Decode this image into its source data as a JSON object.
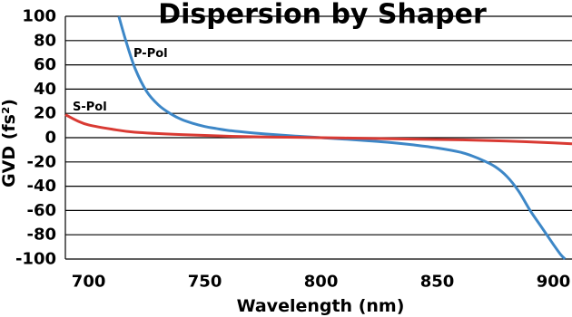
{
  "chart_data": {
    "type": "line",
    "title": "Dispersion by Shaper",
    "xlabel": "Wavelength (nm)",
    "ylabel": "GVD (fs²)",
    "xlim": [
      690,
      908
    ],
    "ylim": [
      -100,
      100
    ],
    "xticks": [
      700,
      750,
      800,
      850,
      900
    ],
    "yticks": [
      100,
      80,
      60,
      40,
      20,
      0,
      -20,
      -40,
      -60,
      -80,
      -100
    ],
    "grid": "horizontal",
    "series": [
      {
        "name": "P-Pol",
        "color": "#3d87c7",
        "x": [
          713,
          716,
          720,
          725,
          730,
          735,
          740,
          745,
          750,
          755,
          760,
          770,
          780,
          790,
          800,
          810,
          820,
          830,
          840,
          850,
          860,
          865,
          870,
          875,
          880,
          885,
          890,
          895,
          900,
          903,
          905
        ],
        "y": [
          100,
          80,
          57,
          38,
          27,
          20,
          15,
          11.7,
          9.2,
          7.5,
          6,
          4,
          2.5,
          1.2,
          0,
          -1.2,
          -2.5,
          -4,
          -6,
          -8.5,
          -12,
          -15,
          -19,
          -24,
          -32,
          -44,
          -60,
          -74,
          -88,
          -96,
          -100
        ]
      },
      {
        "name": "S-Pol",
        "color": "#d93a33",
        "x": [
          690,
          695,
          700,
          710,
          720,
          740,
          760,
          780,
          800,
          820,
          840,
          860,
          880,
          900,
          908
        ],
        "y": [
          19,
          14,
          10.5,
          7,
          4.5,
          2.5,
          1.2,
          0.5,
          0,
          -0.6,
          -1.2,
          -1.8,
          -2.8,
          -4.3,
          -5
        ]
      }
    ]
  }
}
